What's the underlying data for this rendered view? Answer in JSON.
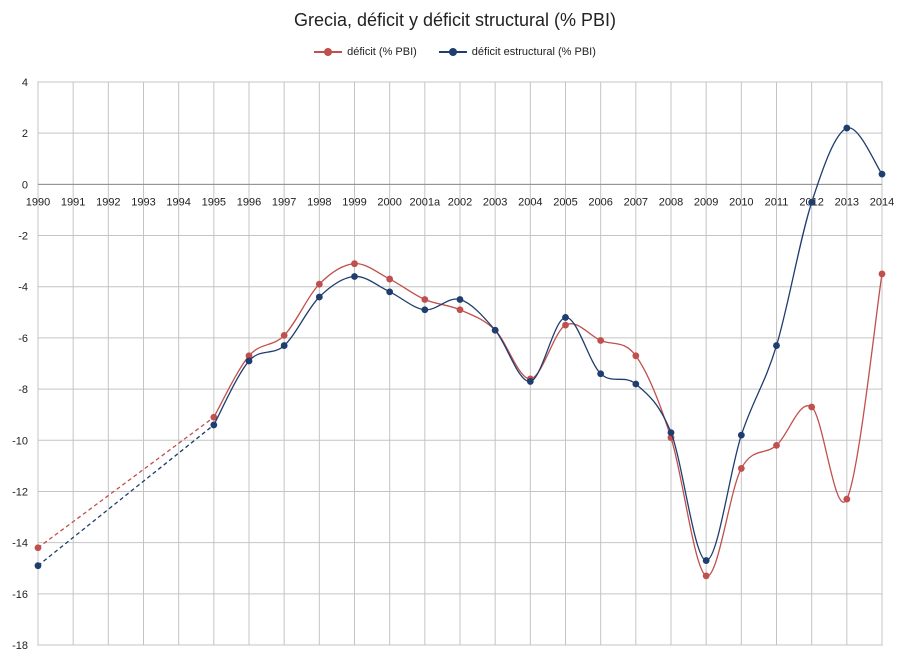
{
  "chart_data": {
    "type": "line",
    "title": "Grecia, déficit y déficit structural (% PBI)",
    "categories": [
      "1990",
      "1991",
      "1992",
      "1993",
      "1994",
      "1995",
      "1996",
      "1997",
      "1998",
      "1999",
      "2000",
      "2001a",
      "2002",
      "2003",
      "2004",
      "2005",
      "2006",
      "2007",
      "2008",
      "2009",
      "2010",
      "2011",
      "2012",
      "2013",
      "2014"
    ],
    "y_ticks": [
      "4",
      "2",
      "0",
      "-2",
      "-4",
      "-6",
      "-8",
      "-10",
      "-12",
      "-14",
      "-16",
      "-18"
    ],
    "ylim": [
      -18,
      4
    ],
    "grid": true,
    "legend_position": "top-center",
    "series": [
      {
        "name": "déficit (% PBI)",
        "color": "#c0504d",
        "values": [
          -14.2,
          null,
          null,
          null,
          null,
          -9.1,
          -6.7,
          -5.9,
          -3.9,
          -3.1,
          -3.7,
          -4.5,
          -4.9,
          -5.7,
          -7.6,
          -5.5,
          -6.1,
          -6.7,
          -9.9,
          -15.3,
          -11.1,
          -10.2,
          -8.7,
          -12.3,
          -3.5
        ]
      },
      {
        "name": "déficit estructural (% PBI)",
        "color": "#1f3d6e",
        "values": [
          -14.9,
          null,
          null,
          null,
          null,
          -9.4,
          -6.9,
          -6.3,
          -4.4,
          -3.6,
          -4.2,
          -4.9,
          -4.5,
          -5.7,
          -7.7,
          -5.2,
          -7.4,
          -7.8,
          -9.7,
          -14.7,
          -9.8,
          -6.3,
          -0.7,
          2.2,
          0.4
        ]
      }
    ]
  }
}
